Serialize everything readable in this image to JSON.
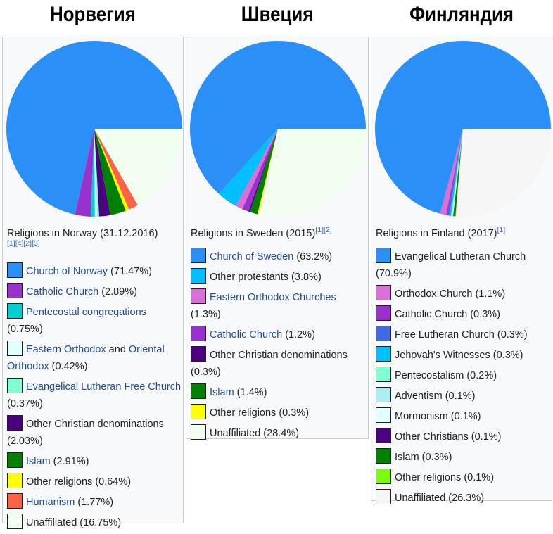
{
  "headings": [
    "Норвегия",
    "Швеция",
    "Финляндия"
  ],
  "chart_data": [
    {
      "type": "pie",
      "caption": "Religions in Norway (31.12.2016)",
      "refs": [
        "[1]",
        "[4]",
        "[2]",
        "[3]"
      ],
      "slices": [
        {
          "label": "Church of Norway",
          "value": 71.47,
          "color": "#2a8ff7",
          "text": [
            {
              "t": "Church of Norway",
              "link": true
            }
          ],
          "tail": " (71.47%)"
        },
        {
          "label": "Catholic Church",
          "value": 2.89,
          "color": "#9932cc",
          "text": [
            {
              "t": "Catholic Church",
              "link": true
            }
          ],
          "tail": " (2.89%)"
        },
        {
          "label": "Pentecostal congregations",
          "value": 0.75,
          "color": "#00ced1",
          "text": [
            {
              "t": "Pentecostal congregations",
              "link": true
            }
          ],
          "tail": " (0.75%)"
        },
        {
          "label": "Eastern Orthodox and Oriental Orthodox",
          "value": 0.42,
          "color": "#e0ffff",
          "text": [
            {
              "t": "Eastern Orthodox",
              "link": true
            },
            {
              "t": " and ",
              "link": false
            },
            {
              "t": "Oriental Orthodox",
              "link": true
            }
          ],
          "tail": " (0.42%)"
        },
        {
          "label": "Evangelical Lutheran Free Church",
          "value": 0.37,
          "color": "#7fffd4",
          "text": [
            {
              "t": "Evangelical Lutheran Free Church",
              "link": true
            }
          ],
          "tail": " (0.37%)"
        },
        {
          "label": "Other Christian denominations",
          "value": 2.03,
          "color": "#4b0082",
          "text": [
            {
              "t": "Other Christian denominations",
              "link": false
            }
          ],
          "tail": " (2.03%)"
        },
        {
          "label": "Islam",
          "value": 2.91,
          "color": "#008000",
          "text": [
            {
              "t": "Islam",
              "link": true
            }
          ],
          "tail": " (2.91%)"
        },
        {
          "label": "Other religions",
          "value": 0.64,
          "color": "#ffff00",
          "text": [
            {
              "t": "Other religions",
              "link": false
            }
          ],
          "tail": " (0.64%)"
        },
        {
          "label": "Humanism",
          "value": 1.77,
          "color": "#ff6347",
          "text": [
            {
              "t": "Humanism",
              "link": true
            }
          ],
          "tail": " (1.77%)"
        },
        {
          "label": "Unaffiliated",
          "value": 16.75,
          "color": "#f0fff0",
          "text": [
            {
              "t": "Unaffiliated",
              "link": false
            }
          ],
          "tail": " (16.75%)"
        }
      ]
    },
    {
      "type": "pie",
      "caption": "Religions in Sweden (2015)",
      "refs": [
        "[1]",
        "[2]"
      ],
      "slices": [
        {
          "label": "Church of Sweden",
          "value": 63.2,
          "color": "#2a8ff7",
          "text": [
            {
              "t": "Church of Sweden",
              "link": true
            }
          ],
          "tail": " (63.2%)"
        },
        {
          "label": "Other protestants",
          "value": 3.8,
          "color": "#00bfff",
          "text": [
            {
              "t": "Other protestants",
              "link": false
            }
          ],
          "tail": " (3.8%)"
        },
        {
          "label": "Eastern Orthodox Churches",
          "value": 1.3,
          "color": "#da70d6",
          "text": [
            {
              "t": "Eastern Orthodox Churches",
              "link": true
            }
          ],
          "tail": " (1.3%)"
        },
        {
          "label": "Catholic Church",
          "value": 1.2,
          "color": "#9932cc",
          "text": [
            {
              "t": "Catholic Church",
              "link": true
            }
          ],
          "tail": " (1.2%)"
        },
        {
          "label": "Other Christian denominations",
          "value": 0.3,
          "color": "#4b0082",
          "text": [
            {
              "t": "Other Christian denominations",
              "link": false
            }
          ],
          "tail": " (0.3%)"
        },
        {
          "label": "Islam",
          "value": 1.4,
          "color": "#008000",
          "text": [
            {
              "t": "Islam",
              "link": true
            }
          ],
          "tail": " (1.4%)"
        },
        {
          "label": "Other religions",
          "value": 0.3,
          "color": "#ffff00",
          "text": [
            {
              "t": "Other religions",
              "link": false
            }
          ],
          "tail": " (0.3%)"
        },
        {
          "label": "Unaffiliated",
          "value": 28.4,
          "color": "#f0fff0",
          "text": [
            {
              "t": "Unaffiliated",
              "link": false
            }
          ],
          "tail": " (28.4%)"
        }
      ]
    },
    {
      "type": "pie",
      "caption": "Religions in Finland (2017)",
      "refs": [
        "[1]"
      ],
      "slices": [
        {
          "label": "Evangelical Lutheran Church",
          "value": 70.9,
          "color": "#2a8ff7",
          "text": [
            {
              "t": "Evangelical Lutheran Church",
              "link": false
            }
          ],
          "tail": " (70.9%)"
        },
        {
          "label": "Orthodox Church",
          "value": 1.1,
          "color": "#da70d6",
          "text": [
            {
              "t": "Orthodox Church",
              "link": false
            }
          ],
          "tail": " (1.1%)"
        },
        {
          "label": "Catholic Church",
          "value": 0.3,
          "color": "#9932cc",
          "text": [
            {
              "t": "Catholic Church",
              "link": false
            }
          ],
          "tail": " (0.3%)"
        },
        {
          "label": "Free Lutheran Church",
          "value": 0.3,
          "color": "#4169e1",
          "text": [
            {
              "t": "Free Lutheran Church",
              "link": false
            }
          ],
          "tail": " (0.3%)"
        },
        {
          "label": "Jehovah's Witnesses",
          "value": 0.3,
          "color": "#00bfff",
          "text": [
            {
              "t": "Jehovah's Witnesses",
              "link": false
            }
          ],
          "tail": " (0.3%)"
        },
        {
          "label": "Pentecostalism",
          "value": 0.2,
          "color": "#7fffd4",
          "text": [
            {
              "t": "Pentecostalism",
              "link": false
            }
          ],
          "tail": " (0.2%)"
        },
        {
          "label": "Adventism",
          "value": 0.1,
          "color": "#afeeee",
          "text": [
            {
              "t": "Adventism",
              "link": false
            }
          ],
          "tail": " (0.1%)"
        },
        {
          "label": "Mormonism",
          "value": 0.1,
          "color": "#e0ffff",
          "text": [
            {
              "t": "Mormonism",
              "link": false
            }
          ],
          "tail": " (0.1%)"
        },
        {
          "label": "Other Christians",
          "value": 0.1,
          "color": "#4b0082",
          "text": [
            {
              "t": "Other Christians",
              "link": false
            }
          ],
          "tail": " (0.1%)"
        },
        {
          "label": "Islam",
          "value": 0.3,
          "color": "#008000",
          "text": [
            {
              "t": "Islam",
              "link": false
            }
          ],
          "tail": " (0.3%)"
        },
        {
          "label": "Other religions",
          "value": 0.1,
          "color": "#7cfc00",
          "text": [
            {
              "t": "Other religions",
              "link": false
            }
          ],
          "tail": " (0.1%)"
        },
        {
          "label": "Unaffiliated",
          "value": 26.3,
          "color": "#f5f5f5",
          "text": [
            {
              "t": "Unaffiliated",
              "link": false
            }
          ],
          "tail": " (26.3%)"
        }
      ]
    }
  ]
}
